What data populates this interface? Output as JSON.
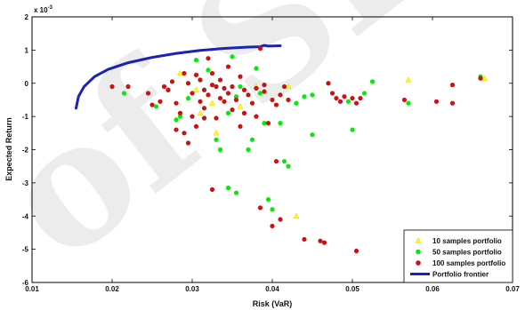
{
  "chart_data": {
    "type": "scatter",
    "title": "",
    "xlabel": "Risk (VaR)",
    "ylabel": "Expected Return",
    "y_multiplier": "x 10",
    "y_multiplier_exp": "-3",
    "xlim": [
      0.01,
      0.07
    ],
    "ylim": [
      -6,
      2
    ],
    "xticks": [
      "0.01",
      "0.02",
      "0.03",
      "0.04",
      "0.05",
      "0.06",
      "0.07"
    ],
    "yticks": [
      "2",
      "1",
      "0",
      "-1",
      "-2",
      "-3",
      "-4",
      "-5",
      "-6"
    ],
    "xtick_values": [
      0.01,
      0.02,
      0.03,
      0.04,
      0.05,
      0.06,
      0.07
    ],
    "ytick_values": [
      2,
      1,
      0,
      -1,
      -2,
      -3,
      -4,
      -5,
      -6
    ],
    "grid": false,
    "legend_position": "bottom-right",
    "watermark": "of SID",
    "series": [
      {
        "name": "10 samples portfolio",
        "marker": "triangle",
        "color": "#ffff00",
        "points": [
          [
            0.0285,
            0.3
          ],
          [
            0.0305,
            -0.2
          ],
          [
            0.031,
            -0.9
          ],
          [
            0.0325,
            -0.6
          ],
          [
            0.033,
            -1.5
          ],
          [
            0.036,
            -0.7
          ],
          [
            0.038,
            -0.1
          ],
          [
            0.042,
            -0.1
          ],
          [
            0.043,
            -4.0
          ],
          [
            0.057,
            0.1
          ],
          [
            0.0665,
            0.15
          ]
        ]
      },
      {
        "name": "50 samples portfolio",
        "marker": "circle",
        "color": "#00ee00",
        "points": [
          [
            0.0215,
            -0.3
          ],
          [
            0.0255,
            -0.7
          ],
          [
            0.027,
            -0.2
          ],
          [
            0.028,
            -1.1
          ],
          [
            0.0285,
            -1.0
          ],
          [
            0.0295,
            -0.45
          ],
          [
            0.0305,
            0.7
          ],
          [
            0.031,
            0.1
          ],
          [
            0.032,
            0.4
          ],
          [
            0.033,
            -1.7
          ],
          [
            0.0335,
            -2.0
          ],
          [
            0.0345,
            -0.9
          ],
          [
            0.035,
            0.8
          ],
          [
            0.0355,
            -0.4
          ],
          [
            0.0345,
            -3.15
          ],
          [
            0.0355,
            -3.3
          ],
          [
            0.036,
            -0.1
          ],
          [
            0.037,
            -2.0
          ],
          [
            0.0375,
            -1.7
          ],
          [
            0.038,
            0.45
          ],
          [
            0.0385,
            -0.3
          ],
          [
            0.039,
            -1.2
          ],
          [
            0.0395,
            -3.5
          ],
          [
            0.04,
            -3.8
          ],
          [
            0.041,
            -1.2
          ],
          [
            0.0415,
            -2.35
          ],
          [
            0.042,
            -2.5
          ],
          [
            0.043,
            -0.6
          ],
          [
            0.044,
            -0.4
          ],
          [
            0.045,
            -1.55
          ],
          [
            0.045,
            -0.35
          ],
          [
            0.0495,
            -0.55
          ],
          [
            0.05,
            -1.4
          ],
          [
            0.0515,
            -0.3
          ],
          [
            0.0525,
            0.05
          ],
          [
            0.057,
            -0.6
          ],
          [
            0.066,
            0.2
          ]
        ]
      },
      {
        "name": "100 samples portfolio",
        "marker": "circle",
        "color": "#cc1111",
        "points": [
          [
            0.02,
            -0.1
          ],
          [
            0.022,
            -0.1
          ],
          [
            0.0245,
            -0.3
          ],
          [
            0.025,
            -0.65
          ],
          [
            0.026,
            -0.55
          ],
          [
            0.0265,
            -0.1
          ],
          [
            0.027,
            -0.2
          ],
          [
            0.0275,
            0.05
          ],
          [
            0.028,
            -0.6
          ],
          [
            0.028,
            -1.4
          ],
          [
            0.0285,
            -0.9
          ],
          [
            0.029,
            0.3
          ],
          [
            0.029,
            -1.5
          ],
          [
            0.0295,
            -1.8
          ],
          [
            0.0295,
            0.0
          ],
          [
            0.03,
            -0.3
          ],
          [
            0.03,
            -1.0
          ],
          [
            0.0305,
            -1.3
          ],
          [
            0.0305,
            0.25
          ],
          [
            0.031,
            -0.55
          ],
          [
            0.031,
            0.1
          ],
          [
            0.0315,
            -0.2
          ],
          [
            0.0315,
            -0.75
          ],
          [
            0.0315,
            -1.05
          ],
          [
            0.032,
            0.75
          ],
          [
            0.032,
            -0.35
          ],
          [
            0.0325,
            -0.05
          ],
          [
            0.0325,
            0.3
          ],
          [
            0.0325,
            -3.2
          ],
          [
            0.033,
            -1.05
          ],
          [
            0.033,
            -0.1
          ],
          [
            0.0335,
            -0.45
          ],
          [
            0.0335,
            0.1
          ],
          [
            0.034,
            -0.55
          ],
          [
            0.034,
            -0.15
          ],
          [
            0.0345,
            0.5
          ],
          [
            0.0345,
            -0.3
          ],
          [
            0.035,
            -0.1
          ],
          [
            0.035,
            -0.8
          ],
          [
            0.0355,
            -0.5
          ],
          [
            0.036,
            0.2
          ],
          [
            0.036,
            -1.3
          ],
          [
            0.0365,
            -0.2
          ],
          [
            0.0365,
            -0.9
          ],
          [
            0.037,
            -0.35
          ],
          [
            0.0375,
            -0.6
          ],
          [
            0.038,
            -0.15
          ],
          [
            0.038,
            -1.0
          ],
          [
            0.0385,
            -3.75
          ],
          [
            0.0385,
            1.05
          ],
          [
            0.039,
            -0.25
          ],
          [
            0.039,
            -0.05
          ],
          [
            0.0395,
            -1.2
          ],
          [
            0.04,
            -0.5
          ],
          [
            0.04,
            -4.3
          ],
          [
            0.0405,
            -0.65
          ],
          [
            0.0405,
            -2.35
          ],
          [
            0.041,
            -0.35
          ],
          [
            0.041,
            -4.1
          ],
          [
            0.0415,
            -0.1
          ],
          [
            0.042,
            -0.5
          ],
          [
            0.044,
            -4.7
          ],
          [
            0.046,
            -4.75
          ],
          [
            0.0465,
            -4.8
          ],
          [
            0.047,
            0.0
          ],
          [
            0.0475,
            -0.3
          ],
          [
            0.048,
            -0.45
          ],
          [
            0.0485,
            -0.55
          ],
          [
            0.049,
            -0.4
          ],
          [
            0.05,
            -0.45
          ],
          [
            0.0505,
            -5.05
          ],
          [
            0.0505,
            -0.6
          ],
          [
            0.051,
            -0.45
          ],
          [
            0.0565,
            -0.5
          ],
          [
            0.0605,
            -0.55
          ],
          [
            0.0625,
            -0.05
          ],
          [
            0.0625,
            -0.6
          ],
          [
            0.066,
            0.15
          ]
        ]
      },
      {
        "name": "Portfolio frontier",
        "marker": "line",
        "color": "#1a23b4",
        "points": [
          [
            0.0155,
            -0.75
          ],
          [
            0.0158,
            -0.4
          ],
          [
            0.0165,
            -0.1
          ],
          [
            0.0178,
            0.2
          ],
          [
            0.0195,
            0.42
          ],
          [
            0.022,
            0.62
          ],
          [
            0.025,
            0.78
          ],
          [
            0.028,
            0.9
          ],
          [
            0.031,
            0.99
          ],
          [
            0.034,
            1.05
          ],
          [
            0.037,
            1.09
          ],
          [
            0.0385,
            1.1
          ],
          [
            0.039,
            1.14
          ],
          [
            0.0395,
            1.12
          ],
          [
            0.041,
            1.13
          ]
        ]
      }
    ]
  }
}
